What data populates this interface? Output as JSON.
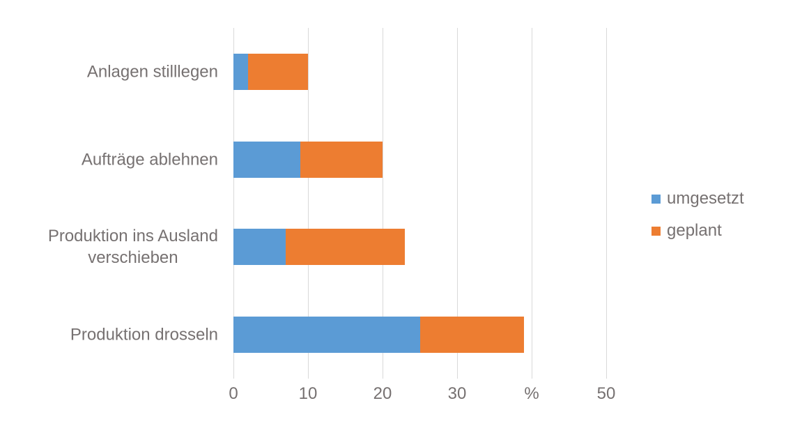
{
  "chart_data": {
    "type": "bar",
    "orientation": "horizontal",
    "stacked": true,
    "title": "",
    "xlabel": "",
    "ylabel": "",
    "unit": "%",
    "categories": [
      "Anlagen stilllegen",
      "Aufträge ablehnen",
      "Produktion ins Ausland\nverschieben",
      "Produktion drosseln"
    ],
    "series": [
      {
        "name": "umgesetzt",
        "color": "#5B9BD5",
        "values": [
          2,
          9,
          7,
          25
        ]
      },
      {
        "name": "geplant",
        "color": "#ED7D31",
        "values": [
          8,
          11,
          16,
          14
        ]
      }
    ],
    "totals": [
      10,
      20,
      23,
      39
    ],
    "xlim": [
      0,
      50
    ],
    "x_ticks": [
      0,
      10,
      20,
      30,
      40,
      50
    ],
    "x_tick_labels": [
      "0",
      "10",
      "20",
      "30",
      "%",
      "50"
    ],
    "grid": "vertical",
    "legend_position": "right"
  },
  "style": {
    "background": "#FFFFFF",
    "text_color": "#767171",
    "gridline_color": "#D9D9D9"
  }
}
